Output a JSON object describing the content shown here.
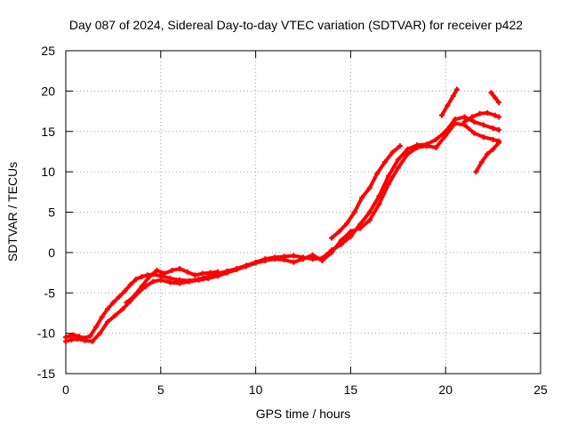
{
  "chart_data": {
    "type": "scatter",
    "title": "Day 087 of 2024, Sidereal Day-to-day VTEC variation (SDTVAR) for receiver p422",
    "xlabel": "GPS time / hours",
    "ylabel": "SDTVAR / TECUs",
    "xlim": [
      0,
      25
    ],
    "ylim": [
      -15,
      25
    ],
    "xticks": [
      0,
      5,
      10,
      15,
      20,
      25
    ],
    "yticks": [
      -15,
      -10,
      -5,
      0,
      5,
      10,
      15,
      20,
      25
    ],
    "grid": true,
    "legend": "none",
    "marker": "plus",
    "series_color": "#ff0000",
    "series": [
      {
        "x": [
          0.0,
          0.2,
          0.4,
          0.7,
          1.0,
          1.3,
          1.6,
          1.9,
          2.2,
          2.5,
          2.8,
          3.1,
          3.4,
          3.7,
          4.0,
          4.3,
          4.6,
          5.0,
          5.5,
          6.0,
          6.5,
          7.0,
          7.5,
          8.0,
          8.5,
          9.0,
          9.5,
          10.0,
          10.5,
          11.0,
          11.5,
          12.0,
          12.5,
          13.0,
          13.5,
          14.0,
          14.5,
          15.0,
          15.5,
          16.0,
          16.5,
          17.0,
          17.5,
          18.0,
          18.5,
          19.0,
          19.5,
          20.0,
          20.5,
          21.0,
          21.5,
          22.0,
          22.5,
          22.8
        ],
        "y": [
          -10.5,
          -10.3,
          -10.2,
          -10.4,
          -10.6,
          -10.3,
          -9.2,
          -8.0,
          -7.0,
          -6.2,
          -5.5,
          -4.8,
          -4.0,
          -3.3,
          -3.0,
          -2.8,
          -2.7,
          -2.9,
          -3.2,
          -3.4,
          -3.5,
          -3.3,
          -3.0,
          -2.6,
          -2.3,
          -2.0,
          -1.6,
          -1.2,
          -0.8,
          -0.6,
          -0.5,
          -0.4,
          -0.6,
          -0.8,
          -0.7,
          0.3,
          1.0,
          2.0,
          3.5,
          5.0,
          7.0,
          9.5,
          11.5,
          12.8,
          13.3,
          13.4,
          14.0,
          15.0,
          16.5,
          16.8,
          16.2,
          15.8,
          15.4,
          15.2
        ]
      },
      {
        "x": [
          0.0,
          0.3,
          0.6,
          1.0,
          1.4,
          1.8,
          2.2,
          2.6,
          3.0,
          3.4,
          3.8,
          4.2,
          4.6,
          5.0,
          5.5,
          6.0,
          6.5,
          7.0,
          7.5,
          8.0,
          8.5,
          9.0,
          9.5,
          10.0,
          10.5,
          11.0,
          11.5,
          12.0,
          12.5,
          13.0,
          13.5,
          14.0,
          14.5,
          15.0,
          15.5,
          16.0,
          16.5,
          17.0,
          17.5,
          18.0,
          18.5,
          19.0,
          19.5,
          20.0,
          20.5,
          21.0,
          21.5,
          22.0,
          22.5,
          22.8
        ],
        "y": [
          -11.0,
          -10.8,
          -10.7,
          -10.9,
          -11.0,
          -10.0,
          -8.6,
          -7.8,
          -7.0,
          -6.0,
          -5.0,
          -4.2,
          -3.6,
          -3.4,
          -3.7,
          -3.8,
          -3.6,
          -3.4,
          -3.2,
          -2.9,
          -2.5,
          -2.1,
          -1.7,
          -1.3,
          -1.0,
          -0.8,
          -0.9,
          -1.2,
          -0.8,
          -0.3,
          -1.0,
          0.0,
          1.5,
          2.6,
          3.0,
          4.0,
          6.0,
          8.5,
          10.5,
          12.2,
          13.0,
          13.2,
          13.0,
          14.5,
          16.0,
          15.8,
          14.8,
          14.3,
          14.0,
          13.8
        ]
      },
      {
        "x": [
          3.2,
          3.6,
          4.0,
          4.4,
          4.8,
          5.2,
          5.6,
          6.0,
          6.4,
          6.8,
          7.2,
          7.6,
          8.0
        ],
        "y": [
          -6.2,
          -5.4,
          -4.2,
          -3.0,
          -2.2,
          -2.6,
          -2.2,
          -2.0,
          -2.4,
          -2.8,
          -2.6,
          -2.5,
          -2.4
        ]
      },
      {
        "x": [
          14.0,
          14.4,
          14.8,
          15.2,
          15.6,
          16.0,
          16.4,
          16.8,
          17.2,
          17.6
        ],
        "y": [
          1.8,
          2.6,
          3.6,
          5.0,
          6.8,
          8.0,
          9.8,
          11.2,
          12.4,
          13.2
        ]
      },
      {
        "x": [
          19.8,
          20.1,
          20.4,
          20.6
        ],
        "y": [
          17.0,
          18.2,
          19.4,
          20.2
        ]
      },
      {
        "x": [
          21.6,
          21.9,
          22.2,
          22.5,
          22.8
        ],
        "y": [
          10.0,
          11.2,
          12.2,
          12.8,
          13.6
        ]
      },
      {
        "x": [
          21.0,
          21.4,
          21.8,
          22.2,
          22.6,
          22.8
        ],
        "y": [
          16.2,
          16.8,
          17.2,
          17.3,
          17.0,
          16.8
        ]
      },
      {
        "x": [
          22.4,
          22.6,
          22.8
        ],
        "y": [
          19.8,
          19.2,
          18.6
        ]
      }
    ]
  }
}
